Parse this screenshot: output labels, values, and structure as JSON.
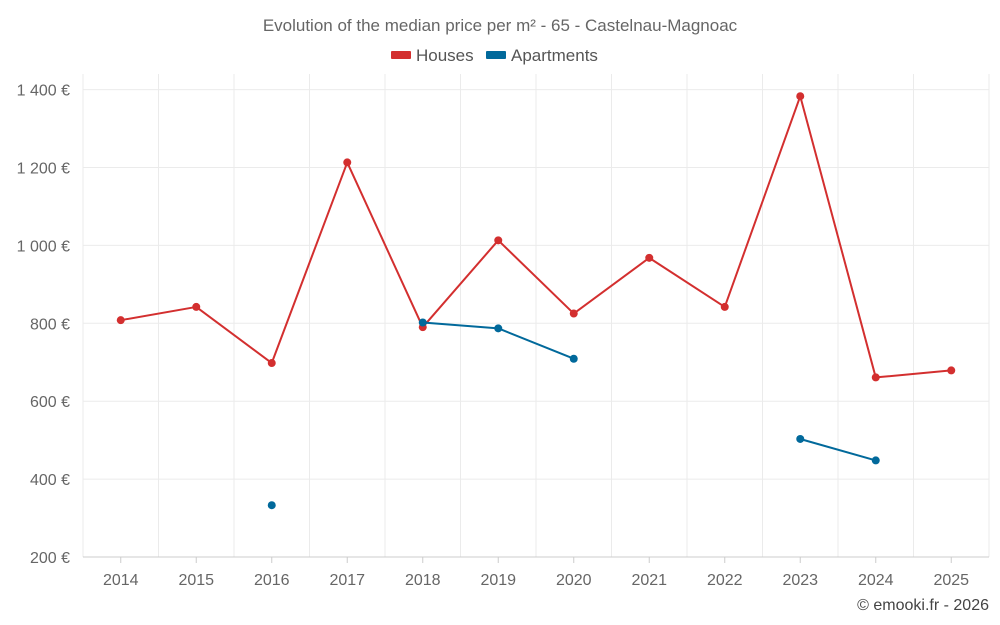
{
  "chart_data": {
    "type": "line",
    "title": "Evolution of the median price per m² - 65 - Castelnau-Magnoac",
    "categories": [
      "2014",
      "2015",
      "2016",
      "2017",
      "2018",
      "2019",
      "2020",
      "2021",
      "2022",
      "2023",
      "2024",
      "2025"
    ],
    "y_ticks": [
      "200 €",
      "400 €",
      "600 €",
      "800 €",
      "1 000 €",
      "1 200 €",
      "1 400 €"
    ],
    "ylim": [
      200,
      1440
    ],
    "grid": true,
    "legend_position": "top-center",
    "series": [
      {
        "name": "Houses",
        "color": "#d32f2f",
        "values": [
          808,
          842,
          698,
          1213,
          790,
          1013,
          825,
          968,
          842,
          1383,
          661,
          679
        ]
      },
      {
        "name": "Apartments",
        "color": "#01699b",
        "values": [
          null,
          null,
          333,
          null,
          802,
          787,
          709,
          null,
          null,
          503,
          448,
          null
        ]
      }
    ]
  },
  "credit": "© emooki.fr - 2026"
}
